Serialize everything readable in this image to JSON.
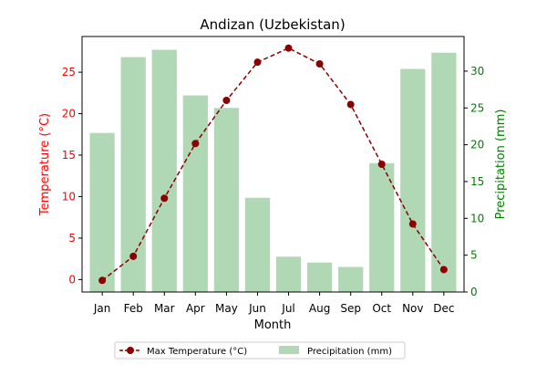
{
  "chart_data": {
    "type": "bar",
    "title": "Andizan (Uzbekistan)",
    "xlabel": "Month",
    "ylabel_left": "Temperature (°C)",
    "ylabel_right": "Precipitation (mm)",
    "categories": [
      "Jan",
      "Feb",
      "Mar",
      "Apr",
      "May",
      "Jun",
      "Jul",
      "Aug",
      "Sep",
      "Oct",
      "Nov",
      "Dec"
    ],
    "ylim_left": [
      -1.5,
      29.3
    ],
    "ylim_right": [
      0,
      34.7
    ],
    "yticks_left": [
      0,
      5,
      10,
      15,
      20,
      25
    ],
    "yticks_right": [
      0,
      5,
      10,
      15,
      20,
      25,
      30
    ],
    "series": [
      {
        "name": "Max Temperature (°C)",
        "type": "line",
        "axis": "left",
        "color": "#8b0000",
        "style": "dashed",
        "marker": "circle",
        "values": [
          -0.1,
          2.8,
          9.8,
          16.4,
          21.6,
          26.2,
          27.9,
          26.0,
          21.1,
          13.9,
          6.7,
          1.2
        ]
      },
      {
        "name": "Precipitation (mm)",
        "type": "bar",
        "axis": "right",
        "color": "#b1d8b4",
        "values": [
          21.6,
          31.9,
          32.9,
          26.7,
          25.0,
          12.8,
          4.8,
          4.0,
          3.4,
          17.5,
          30.3,
          32.5
        ]
      }
    ],
    "legend": {
      "placement": "bottom-center"
    },
    "colors": {
      "left_axis": "#ff0000",
      "right_axis": "#008000",
      "axes": "#000000"
    },
    "grid": false
  }
}
